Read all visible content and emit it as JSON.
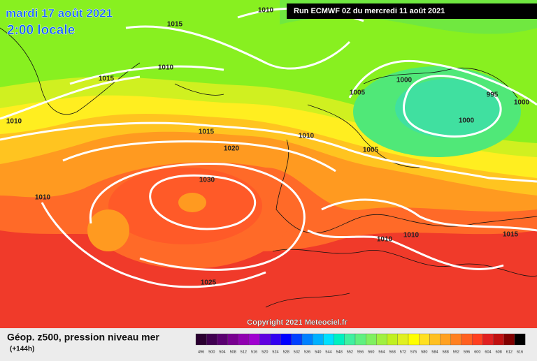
{
  "header": {
    "date": "mardi 17 août 2021",
    "time": "2:00 locale",
    "run": "Run ECMWF 0Z du mercredi 11 août 2021"
  },
  "isobars": [
    "1010",
    "1015",
    "1010",
    "1015",
    "1010",
    "1005",
    "1000",
    "995",
    "1000",
    "1000",
    "1015",
    "1010",
    "1020",
    "1005",
    "1030",
    "1010",
    "1010",
    "1010",
    "1015",
    "1025"
  ],
  "credit": "Copyright 2021 Meteociel.fr",
  "legend": {
    "title": "Géop. z500, pression niveau mer",
    "lead": "(+144h)",
    "levels": [
      {
        "value": 496,
        "color": "#2a0030"
      },
      {
        "value": 500,
        "color": "#400050"
      },
      {
        "value": 504,
        "color": "#5a0070"
      },
      {
        "value": 508,
        "color": "#780090"
      },
      {
        "value": 512,
        "color": "#9000b0"
      },
      {
        "value": 516,
        "color": "#a000d0"
      },
      {
        "value": 520,
        "color": "#6000e0"
      },
      {
        "value": 524,
        "color": "#3000f0"
      },
      {
        "value": 528,
        "color": "#0000ff"
      },
      {
        "value": 532,
        "color": "#0040ff"
      },
      {
        "value": 536,
        "color": "#0080ff"
      },
      {
        "value": 540,
        "color": "#00b0ff"
      },
      {
        "value": 544,
        "color": "#00e0ff"
      },
      {
        "value": 548,
        "color": "#00f0c0"
      },
      {
        "value": 552,
        "color": "#40f0a0"
      },
      {
        "value": 556,
        "color": "#60f080"
      },
      {
        "value": 560,
        "color": "#80f060"
      },
      {
        "value": 564,
        "color": "#a0f040"
      },
      {
        "value": 568,
        "color": "#c0f020"
      },
      {
        "value": 572,
        "color": "#e0f020"
      },
      {
        "value": 576,
        "color": "#ffff00"
      },
      {
        "value": 580,
        "color": "#ffe020"
      },
      {
        "value": 584,
        "color": "#ffc020"
      },
      {
        "value": 588,
        "color": "#ffa020"
      },
      {
        "value": 592,
        "color": "#ff8020"
      },
      {
        "value": 596,
        "color": "#ff6020"
      },
      {
        "value": 600,
        "color": "#ff4020"
      },
      {
        "value": 604,
        "color": "#e02020"
      },
      {
        "value": 608,
        "color": "#c01010"
      },
      {
        "value": 612,
        "color": "#800000"
      },
      {
        "value": 616,
        "color": "#000000"
      }
    ]
  }
}
